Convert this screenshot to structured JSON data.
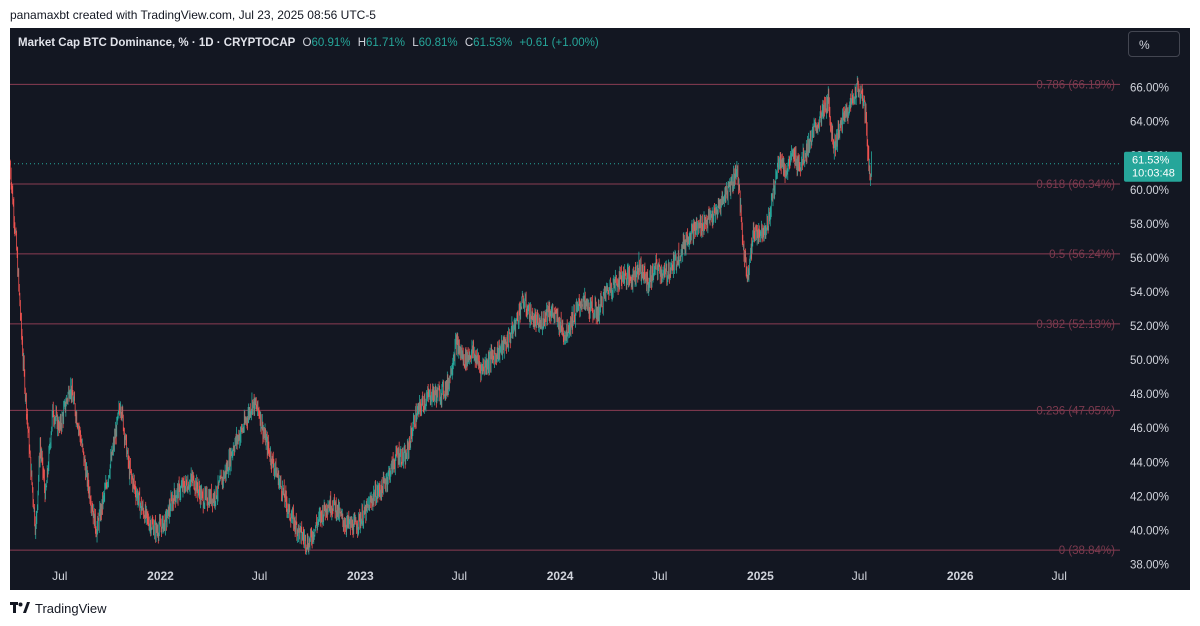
{
  "header": {
    "caption": "panamaxbt created with TradingView.com, Jul 23, 2025 08:56 UTC-5"
  },
  "legend": {
    "symbol": "Market Cap BTC Dominance, % · 1D · CRYPTOCAP",
    "o_label": "O",
    "o_value": "60.91%",
    "h_label": "H",
    "h_value": "61.71%",
    "l_label": "L",
    "l_value": "60.81%",
    "c_label": "C",
    "c_value": "61.53%",
    "change": "+0.61 (+1.00%)"
  },
  "scale_button": "%",
  "price_tag": {
    "value": "61.53%",
    "countdown": "10:03:48"
  },
  "footer": {
    "brand": "TradingView"
  },
  "colors": {
    "background": "#131722",
    "up": "#26a69a",
    "down": "#ef5350",
    "fib_line": "#8a3c52",
    "fib_label": "#7c3a4e",
    "axis_text": "#d1d4dc"
  },
  "chart_data": {
    "type": "line",
    "title": "Market Cap BTC Dominance, % · 1D · CRYPTOCAP",
    "y_unit": "%",
    "ylim": [
      36.5,
      69.5
    ],
    "xlim": [
      "2021-04-01",
      "2026-10-20"
    ],
    "y_ticks": [
      "38.00%",
      "40.00%",
      "42.00%",
      "44.00%",
      "46.00%",
      "48.00%",
      "50.00%",
      "52.00%",
      "54.00%",
      "56.00%",
      "58.00%",
      "60.00%",
      "62.00%",
      "64.00%",
      "66.00%"
    ],
    "x_ticks": [
      {
        "label": "Jul",
        "date": "2021-07-01"
      },
      {
        "label": "2022",
        "date": "2022-01-01"
      },
      {
        "label": "Jul",
        "date": "2022-07-01"
      },
      {
        "label": "2023",
        "date": "2023-01-01"
      },
      {
        "label": "Jul",
        "date": "2023-07-01"
      },
      {
        "label": "2024",
        "date": "2024-01-01"
      },
      {
        "label": "Jul",
        "date": "2024-07-01"
      },
      {
        "label": "2025",
        "date": "2025-01-01"
      },
      {
        "label": "Jul",
        "date": "2025-07-01"
      },
      {
        "label": "2026",
        "date": "2026-01-01"
      },
      {
        "label": "Jul",
        "date": "2026-07-01"
      }
    ],
    "fib_levels": [
      {
        "label": "0.786 (66.19%)",
        "value": 66.19
      },
      {
        "label": "0.618 (60.34%)",
        "value": 60.34
      },
      {
        "label": "0.5 (56.24%)",
        "value": 56.24
      },
      {
        "label": "0.382 (52.13%)",
        "value": 52.13
      },
      {
        "label": "0.236 (47.05%)",
        "value": 47.05
      },
      {
        "label": "0 (38.84%)",
        "value": 38.84
      }
    ],
    "last_value": 61.53,
    "series": [
      {
        "points": [
          [
            "2021-04-01",
            61.5
          ],
          [
            "2021-04-12",
            57.0
          ],
          [
            "2021-04-25",
            50.0
          ],
          [
            "2021-05-08",
            44.0
          ],
          [
            "2021-05-18",
            40.0
          ],
          [
            "2021-05-26",
            45.0
          ],
          [
            "2021-06-05",
            42.0
          ],
          [
            "2021-06-18",
            47.0
          ],
          [
            "2021-07-01",
            46.0
          ],
          [
            "2021-07-20",
            48.5
          ],
          [
            "2021-08-05",
            46.0
          ],
          [
            "2021-08-20",
            43.0
          ],
          [
            "2021-09-06",
            40.0
          ],
          [
            "2021-09-20",
            42.0
          ],
          [
            "2021-10-05",
            44.5
          ],
          [
            "2021-10-20",
            47.5
          ],
          [
            "2021-11-05",
            43.5
          ],
          [
            "2021-11-25",
            41.5
          ],
          [
            "2021-12-10",
            40.5
          ],
          [
            "2021-12-25",
            40.0
          ],
          [
            "2022-01-10",
            40.5
          ],
          [
            "2022-01-25",
            42.0
          ],
          [
            "2022-02-10",
            42.5
          ],
          [
            "2022-03-01",
            43.0
          ],
          [
            "2022-03-20",
            41.8
          ],
          [
            "2022-04-10",
            42.0
          ],
          [
            "2022-05-01",
            43.5
          ],
          [
            "2022-05-15",
            45.0
          ],
          [
            "2022-06-01",
            46.0
          ],
          [
            "2022-06-18",
            47.5
          ],
          [
            "2022-06-30",
            47.0
          ],
          [
            "2022-07-10",
            45.5
          ],
          [
            "2022-07-25",
            44.0
          ],
          [
            "2022-08-10",
            42.5
          ],
          [
            "2022-08-25",
            41.0
          ],
          [
            "2022-09-10",
            40.0
          ],
          [
            "2022-09-28",
            39.2
          ],
          [
            "2022-10-15",
            40.5
          ],
          [
            "2022-11-01",
            41.5
          ],
          [
            "2022-11-15",
            41.5
          ],
          [
            "2022-12-01",
            40.5
          ],
          [
            "2022-12-20",
            40.2
          ],
          [
            "2023-01-10",
            41.0
          ],
          [
            "2023-01-25",
            42.0
          ],
          [
            "2023-02-10",
            42.5
          ],
          [
            "2023-02-25",
            43.5
          ],
          [
            "2023-03-10",
            44.5
          ],
          [
            "2023-03-25",
            44.2
          ],
          [
            "2023-04-10",
            46.5
          ],
          [
            "2023-04-25",
            47.5
          ],
          [
            "2023-05-10",
            48.0
          ],
          [
            "2023-05-25",
            48.0
          ],
          [
            "2023-06-10",
            48.5
          ],
          [
            "2023-06-25",
            51.0
          ],
          [
            "2023-07-10",
            50.0
          ],
          [
            "2023-07-25",
            50.5
          ],
          [
            "2023-08-10",
            49.5
          ],
          [
            "2023-08-25",
            50.0
          ],
          [
            "2023-09-10",
            50.5
          ],
          [
            "2023-09-25",
            51.0
          ],
          [
            "2023-10-10",
            52.0
          ],
          [
            "2023-10-25",
            53.5
          ],
          [
            "2023-11-10",
            52.5
          ],
          [
            "2023-11-25",
            52.0
          ],
          [
            "2023-12-10",
            53.0
          ],
          [
            "2023-12-25",
            52.5
          ],
          [
            "2024-01-10",
            51.5
          ],
          [
            "2024-01-25",
            52.5
          ],
          [
            "2024-02-10",
            53.5
          ],
          [
            "2024-02-25",
            53.0
          ],
          [
            "2024-03-10",
            52.8
          ],
          [
            "2024-03-25",
            54.0
          ],
          [
            "2024-04-10",
            54.5
          ],
          [
            "2024-04-25",
            55.0
          ],
          [
            "2024-05-10",
            54.8
          ],
          [
            "2024-05-25",
            55.5
          ],
          [
            "2024-06-10",
            54.5
          ],
          [
            "2024-06-25",
            55.5
          ],
          [
            "2024-07-10",
            55.0
          ],
          [
            "2024-07-25",
            55.5
          ],
          [
            "2024-08-10",
            56.5
          ],
          [
            "2024-08-25",
            57.5
          ],
          [
            "2024-09-10",
            57.8
          ],
          [
            "2024-09-25",
            58.2
          ],
          [
            "2024-10-10",
            58.5
          ],
          [
            "2024-10-25",
            59.5
          ],
          [
            "2024-11-10",
            60.5
          ],
          [
            "2024-11-20",
            61.2
          ],
          [
            "2024-12-01",
            56.5
          ],
          [
            "2024-12-08",
            55.0
          ],
          [
            "2024-12-20",
            57.5
          ],
          [
            "2025-01-01",
            57.5
          ],
          [
            "2025-01-15",
            58.0
          ],
          [
            "2025-01-28",
            60.5
          ],
          [
            "2025-02-05",
            62.0
          ],
          [
            "2025-02-15",
            61.0
          ],
          [
            "2025-03-01",
            62.0
          ],
          [
            "2025-03-15",
            61.5
          ],
          [
            "2025-03-28",
            62.5
          ],
          [
            "2025-04-10",
            63.5
          ],
          [
            "2025-04-25",
            64.5
          ],
          [
            "2025-05-05",
            65.2
          ],
          [
            "2025-05-15",
            62.5
          ],
          [
            "2025-05-25",
            63.5
          ],
          [
            "2025-06-05",
            64.5
          ],
          [
            "2025-06-15",
            65.0
          ],
          [
            "2025-06-27",
            66.0
          ],
          [
            "2025-07-05",
            65.5
          ],
          [
            "2025-07-12",
            64.5
          ],
          [
            "2025-07-17",
            62.0
          ],
          [
            "2025-07-20",
            60.5
          ],
          [
            "2025-07-23",
            61.53
          ]
        ]
      }
    ]
  }
}
